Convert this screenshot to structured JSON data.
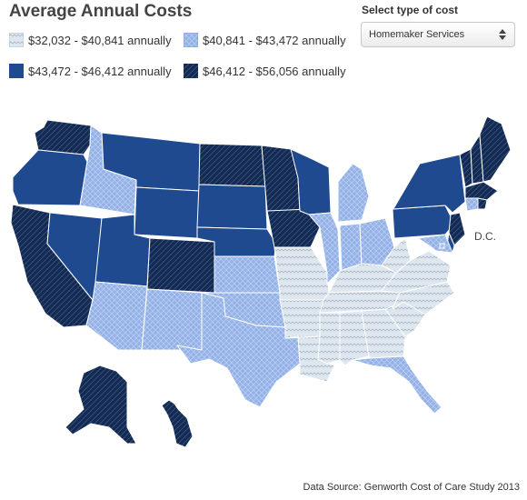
{
  "title": "Average Annual Costs",
  "legend": [
    {
      "label": "$32,032 - $40,841 annually",
      "tier": 1,
      "color": "#dfe7ee",
      "pattern": "zigzag"
    },
    {
      "label": "$40,841 - $43,472 annually",
      "tier": 2,
      "color": "#93b1e6",
      "pattern": "crosshatch"
    },
    {
      "label": "$43,472 - $46,412 annually",
      "tier": 3,
      "color": "#1f4a8f",
      "pattern": "solid"
    },
    {
      "label": "$46,412 - $56,056 annually",
      "tier": 4,
      "color": "#132a52",
      "pattern": "diagonal"
    }
  ],
  "control": {
    "label": "Select type of cost",
    "selected": "Homemaker Services"
  },
  "map": {
    "dc_label": "D.C.",
    "states": [
      {
        "id": "WA",
        "tier": 4
      },
      {
        "id": "OR",
        "tier": 3
      },
      {
        "id": "CA",
        "tier": 4
      },
      {
        "id": "ID",
        "tier": 2
      },
      {
        "id": "NV",
        "tier": 3
      },
      {
        "id": "MT",
        "tier": 3
      },
      {
        "id": "WY",
        "tier": 3
      },
      {
        "id": "UT",
        "tier": 3
      },
      {
        "id": "AZ",
        "tier": 2
      },
      {
        "id": "CO",
        "tier": 4
      },
      {
        "id": "NM",
        "tier": 2
      },
      {
        "id": "ND",
        "tier": 4
      },
      {
        "id": "SD",
        "tier": 3
      },
      {
        "id": "NE",
        "tier": 3
      },
      {
        "id": "KS",
        "tier": 2
      },
      {
        "id": "OK",
        "tier": 2
      },
      {
        "id": "TX",
        "tier": 2
      },
      {
        "id": "MN",
        "tier": 4
      },
      {
        "id": "IA",
        "tier": 4
      },
      {
        "id": "MO",
        "tier": 1
      },
      {
        "id": "AR",
        "tier": 1
      },
      {
        "id": "LA",
        "tier": 1
      },
      {
        "id": "WI",
        "tier": 3
      },
      {
        "id": "IL",
        "tier": 2
      },
      {
        "id": "MI",
        "tier": 2
      },
      {
        "id": "IN",
        "tier": 2
      },
      {
        "id": "OH",
        "tier": 2
      },
      {
        "id": "KY",
        "tier": 1
      },
      {
        "id": "TN",
        "tier": 1
      },
      {
        "id": "MS",
        "tier": 1
      },
      {
        "id": "AL",
        "tier": 1
      },
      {
        "id": "GA",
        "tier": 1
      },
      {
        "id": "FL",
        "tier": 2
      },
      {
        "id": "SC",
        "tier": 1
      },
      {
        "id": "NC",
        "tier": 1
      },
      {
        "id": "VA",
        "tier": 1
      },
      {
        "id": "WV",
        "tier": 1
      },
      {
        "id": "PA",
        "tier": 3
      },
      {
        "id": "NY",
        "tier": 3
      },
      {
        "id": "VT",
        "tier": 4
      },
      {
        "id": "NH",
        "tier": 4
      },
      {
        "id": "ME",
        "tier": 4
      },
      {
        "id": "MA",
        "tier": 4
      },
      {
        "id": "CT",
        "tier": 2
      },
      {
        "id": "RI",
        "tier": 4
      },
      {
        "id": "NJ",
        "tier": 4
      },
      {
        "id": "DE",
        "tier": 3
      },
      {
        "id": "MD",
        "tier": 2
      },
      {
        "id": "DC",
        "tier": 2
      },
      {
        "id": "AK",
        "tier": 4
      },
      {
        "id": "HI",
        "tier": 4
      }
    ]
  },
  "source": "Data Source: Genworth Cost of Care Study 2013"
}
